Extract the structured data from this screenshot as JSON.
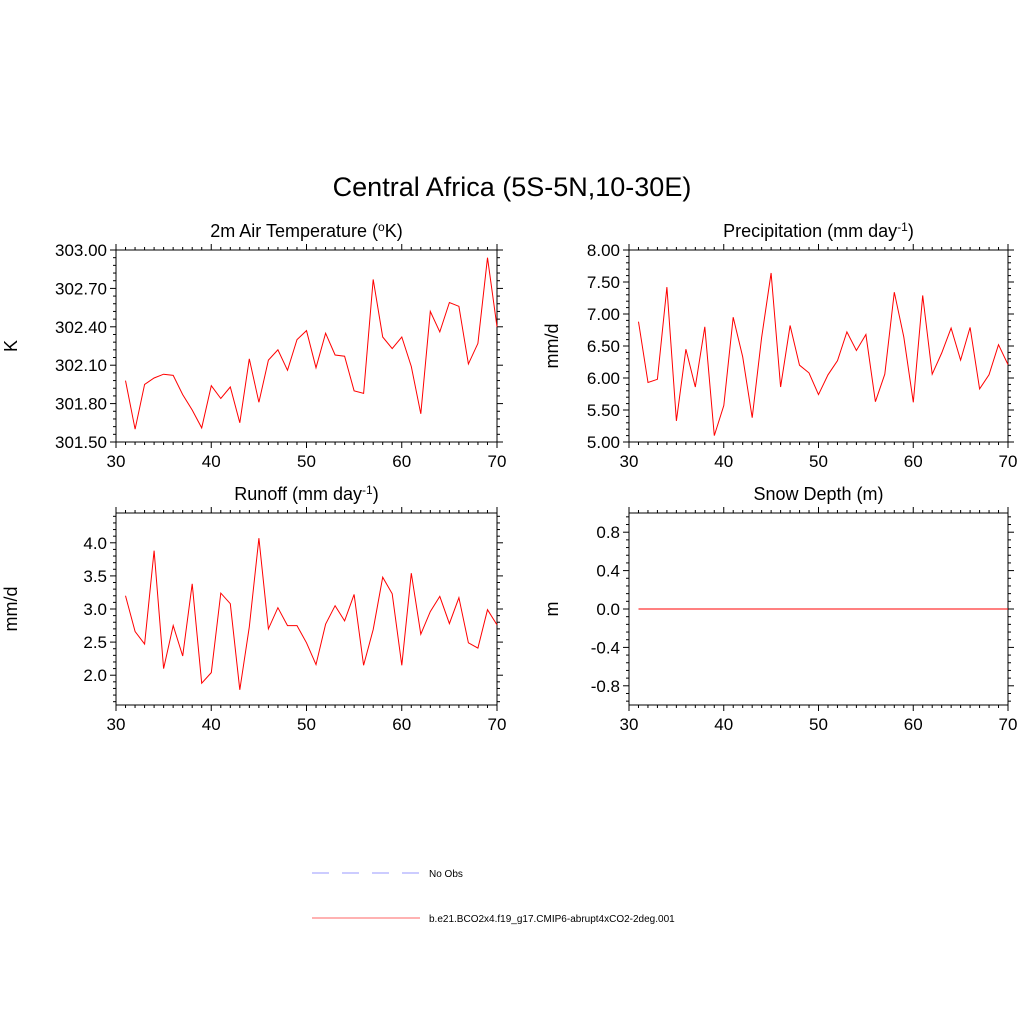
{
  "figure": {
    "title": "Central Africa (5S-5N,10-30E)"
  },
  "chart_data": [
    {
      "type": "line",
      "title": "2m Air Temperature (°K)",
      "title_parts": {
        "pre": "2m Air Temperature (",
        "sup": "o",
        "post": "K)"
      },
      "xlabel": "",
      "ylabel": "K",
      "xlim": [
        30,
        70
      ],
      "ylim": [
        301.5,
        303.0
      ],
      "xticks": [
        30,
        40,
        50,
        60,
        70
      ],
      "yticks": [
        301.5,
        301.8,
        302.1,
        302.4,
        302.7,
        303.0
      ],
      "ytick_labels": [
        "301.50",
        "301.80",
        "302.10",
        "302.40",
        "302.70",
        "303.00"
      ],
      "series": [
        {
          "color": "#ff0000",
          "x": [
            31,
            32,
            33,
            34,
            35,
            36,
            37,
            38,
            39,
            40,
            41,
            42,
            43,
            44,
            45,
            46,
            47,
            48,
            49,
            50,
            51,
            52,
            53,
            54,
            55,
            56,
            57,
            58,
            59,
            60,
            61,
            62,
            63,
            64,
            65,
            66,
            67,
            68,
            69,
            70
          ],
          "y": [
            301.98,
            301.6,
            301.95,
            302.0,
            302.03,
            302.02,
            301.87,
            301.75,
            301.61,
            301.94,
            301.84,
            301.93,
            301.65,
            302.15,
            301.81,
            302.14,
            302.22,
            302.06,
            302.3,
            302.37,
            302.08,
            302.35,
            302.18,
            302.17,
            301.9,
            301.88,
            302.77,
            302.32,
            302.23,
            302.32,
            302.09,
            301.72,
            302.52,
            302.36,
            302.59,
            302.56,
            302.11,
            302.27,
            302.94,
            302.4
          ]
        }
      ]
    },
    {
      "type": "line",
      "title": "Precipitation (mm day⁻¹)",
      "title_parts": {
        "pre": "Precipitation (mm day",
        "sup": "-1",
        "post": ")"
      },
      "xlabel": "",
      "ylabel": "mm/d",
      "xlim": [
        30,
        70
      ],
      "ylim": [
        5.0,
        8.0
      ],
      "xticks": [
        30,
        40,
        50,
        60,
        70
      ],
      "yticks": [
        5.0,
        5.5,
        6.0,
        6.5,
        7.0,
        7.5,
        8.0
      ],
      "ytick_labels": [
        "5.00",
        "5.50",
        "6.00",
        "6.50",
        "7.00",
        "7.50",
        "8.00"
      ],
      "series": [
        {
          "color": "#ff0000",
          "x": [
            31,
            32,
            33,
            34,
            35,
            36,
            37,
            38,
            39,
            40,
            41,
            42,
            43,
            44,
            45,
            46,
            47,
            48,
            49,
            50,
            51,
            52,
            53,
            54,
            55,
            56,
            57,
            58,
            59,
            60,
            61,
            62,
            63,
            64,
            65,
            66,
            67,
            68,
            69,
            70
          ],
          "y": [
            6.88,
            5.93,
            5.98,
            7.42,
            5.33,
            6.45,
            5.86,
            6.8,
            5.1,
            5.57,
            6.95,
            6.33,
            5.38,
            6.63,
            7.64,
            5.86,
            6.82,
            6.2,
            6.08,
            5.74,
            6.05,
            6.27,
            6.72,
            6.43,
            6.68,
            5.63,
            6.06,
            7.34,
            6.64,
            5.62,
            7.29,
            6.06,
            6.39,
            6.78,
            6.28,
            6.79,
            5.83,
            6.05,
            6.52,
            6.21
          ]
        }
      ]
    },
    {
      "type": "line",
      "title": "Runoff (mm day⁻¹)",
      "title_parts": {
        "pre": "Runoff (mm day",
        "sup": "-1",
        "post": ")"
      },
      "xlabel": "",
      "ylabel": "mm/d",
      "xlim": [
        30,
        70
      ],
      "ylim": [
        1.55,
        4.45
      ],
      "xticks": [
        30,
        40,
        50,
        60,
        70
      ],
      "yticks": [
        2.0,
        2.5,
        3.0,
        3.5,
        4.0
      ],
      "ytick_labels": [
        "2.0",
        "2.5",
        "3.0",
        "3.5",
        "4.0"
      ],
      "series": [
        {
          "color": "#ff0000",
          "x": [
            31,
            32,
            33,
            34,
            35,
            36,
            37,
            38,
            39,
            40,
            41,
            42,
            43,
            44,
            45,
            46,
            47,
            48,
            49,
            50,
            51,
            52,
            53,
            54,
            55,
            56,
            57,
            58,
            59,
            60,
            61,
            62,
            63,
            64,
            65,
            66,
            67,
            68,
            69,
            70
          ],
          "y": [
            3.2,
            2.66,
            2.47,
            3.88,
            2.1,
            2.75,
            2.29,
            3.38,
            1.88,
            2.04,
            3.24,
            3.08,
            1.78,
            2.73,
            4.07,
            2.7,
            3.02,
            2.75,
            2.75,
            2.49,
            2.16,
            2.77,
            3.05,
            2.82,
            3.22,
            2.15,
            2.69,
            3.48,
            3.23,
            2.15,
            3.54,
            2.62,
            2.96,
            3.19,
            2.78,
            3.17,
            2.49,
            2.41,
            2.99,
            2.76
          ]
        }
      ]
    },
    {
      "type": "line",
      "title": "Snow Depth (m)",
      "title_parts": {
        "pre": "Snow Depth (m)",
        "sup": "",
        "post": ""
      },
      "xlabel": "",
      "ylabel": "m",
      "xlim": [
        30,
        70
      ],
      "ylim": [
        -1.0,
        1.0
      ],
      "xticks": [
        30,
        40,
        50,
        60,
        70
      ],
      "yticks": [
        -0.8,
        -0.4,
        0.0,
        0.4,
        0.8
      ],
      "ytick_labels": [
        "-0.8",
        "-0.4",
        "0.0",
        "0.4",
        "0.8"
      ],
      "series": [
        {
          "color": "#ff0000",
          "x": [
            31,
            32,
            33,
            34,
            35,
            36,
            37,
            38,
            39,
            40,
            41,
            42,
            43,
            44,
            45,
            46,
            47,
            48,
            49,
            50,
            51,
            52,
            53,
            54,
            55,
            56,
            57,
            58,
            59,
            60,
            61,
            62,
            63,
            64,
            65,
            66,
            67,
            68,
            69,
            70
          ],
          "y": [
            0,
            0,
            0,
            0,
            0,
            0,
            0,
            0,
            0,
            0,
            0,
            0,
            0,
            0,
            0,
            0,
            0,
            0,
            0,
            0,
            0,
            0,
            0,
            0,
            0,
            0,
            0,
            0,
            0,
            0,
            0,
            0,
            0,
            0,
            0,
            0,
            0,
            0,
            0,
            0
          ]
        }
      ]
    }
  ],
  "legend": {
    "placement": "bottom-center",
    "items": [
      {
        "label": "No Obs",
        "color": "#9999ff",
        "style": "dashed"
      },
      {
        "label": "b.e21.BCO2x4.f19_g17.CMIP6-abrupt4xCO2-2deg.001",
        "color": "#ff6666",
        "style": "solid"
      }
    ]
  }
}
